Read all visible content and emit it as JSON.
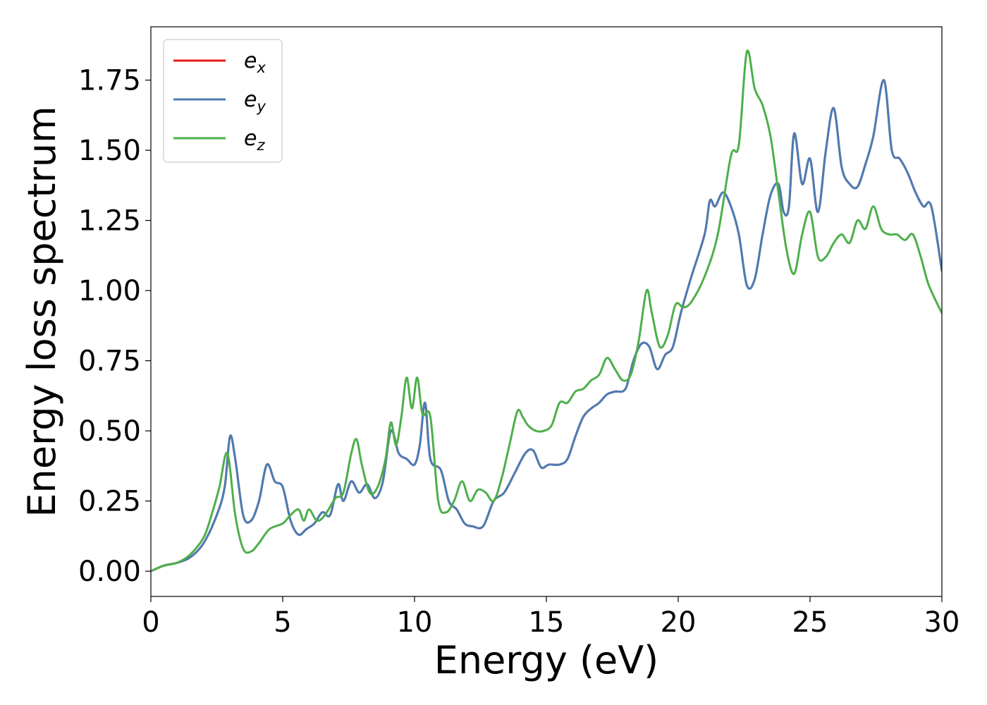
{
  "chart_data": {
    "type": "line",
    "title": "",
    "xlabel": "Energy (eV)",
    "ylabel": "Energy loss spectrum",
    "xlim": [
      0,
      30
    ],
    "ylim": [
      -0.09,
      1.94
    ],
    "xticks": [
      0,
      5,
      10,
      15,
      20,
      25,
      30
    ],
    "xtick_labels": [
      "0",
      "5",
      "10",
      "15",
      "20",
      "25",
      "30"
    ],
    "yticks": [
      0.0,
      0.25,
      0.5,
      0.75,
      1.0,
      1.25,
      1.5,
      1.75
    ],
    "ytick_labels": [
      "0.00",
      "0.25",
      "0.50",
      "0.75",
      "1.00",
      "1.25",
      "1.50",
      "1.75"
    ],
    "grid": false,
    "legend": "top-left",
    "series": [
      {
        "name": "e_x",
        "label_base": "e",
        "label_sub": "x",
        "color": "#e41a1c",
        "x": [
          0,
          0.5,
          1,
          1.5,
          2,
          2.5,
          2.8,
          3,
          3.2,
          3.5,
          3.8,
          4.1,
          4.4,
          4.7,
          5,
          5.3,
          5.6,
          5.9,
          6.2,
          6.5,
          6.8,
          7.1,
          7.3,
          7.6,
          7.9,
          8.2,
          8.5,
          8.8,
          9.1,
          9.4,
          9.7,
          10,
          10.2,
          10.4,
          10.6,
          11,
          11.3,
          11.6,
          11.9,
          12.2,
          12.6,
          13,
          13.4,
          13.8,
          14.2,
          14.5,
          14.8,
          15.1,
          15.5,
          15.8,
          16.1,
          16.4,
          16.7,
          17,
          17.3,
          17.6,
          18,
          18.3,
          18.6,
          18.9,
          19.2,
          19.5,
          19.8,
          20.1,
          20.5,
          21,
          21.2,
          21.4,
          21.7,
          22,
          22.3,
          22.6,
          22.9,
          23.2,
          23.5,
          23.8,
          24,
          24.2,
          24.4,
          24.7,
          25,
          25.3,
          25.6,
          25.9,
          26.2,
          26.5,
          26.8,
          27.1,
          27.4,
          27.8,
          28.1,
          28.4,
          28.7,
          29,
          29.3,
          29.6,
          30
        ],
        "values": [
          0.0,
          0.02,
          0.03,
          0.05,
          0.1,
          0.2,
          0.3,
          0.48,
          0.4,
          0.2,
          0.18,
          0.25,
          0.38,
          0.32,
          0.3,
          0.18,
          0.13,
          0.15,
          0.17,
          0.21,
          0.2,
          0.31,
          0.25,
          0.32,
          0.28,
          0.31,
          0.26,
          0.32,
          0.5,
          0.42,
          0.4,
          0.38,
          0.45,
          0.6,
          0.4,
          0.36,
          0.25,
          0.22,
          0.17,
          0.16,
          0.16,
          0.25,
          0.28,
          0.35,
          0.42,
          0.43,
          0.37,
          0.38,
          0.38,
          0.4,
          0.48,
          0.55,
          0.58,
          0.6,
          0.63,
          0.64,
          0.65,
          0.75,
          0.81,
          0.8,
          0.72,
          0.77,
          0.8,
          0.92,
          1.05,
          1.2,
          1.32,
          1.3,
          1.35,
          1.3,
          1.2,
          1.02,
          1.04,
          1.2,
          1.34,
          1.38,
          1.28,
          1.3,
          1.56,
          1.38,
          1.47,
          1.28,
          1.5,
          1.65,
          1.44,
          1.38,
          1.37,
          1.45,
          1.55,
          1.75,
          1.5,
          1.47,
          1.42,
          1.35,
          1.3,
          1.3,
          1.07
        ]
      },
      {
        "name": "e_y",
        "label_base": "e",
        "label_sub": "y",
        "color": "#4a7db5",
        "x": [
          0,
          0.5,
          1,
          1.5,
          2,
          2.5,
          2.8,
          3,
          3.2,
          3.5,
          3.8,
          4.1,
          4.4,
          4.7,
          5,
          5.3,
          5.6,
          5.9,
          6.2,
          6.5,
          6.8,
          7.1,
          7.3,
          7.6,
          7.9,
          8.2,
          8.5,
          8.8,
          9.1,
          9.4,
          9.7,
          10,
          10.2,
          10.4,
          10.6,
          11,
          11.3,
          11.6,
          11.9,
          12.2,
          12.6,
          13,
          13.4,
          13.8,
          14.2,
          14.5,
          14.8,
          15.1,
          15.5,
          15.8,
          16.1,
          16.4,
          16.7,
          17,
          17.3,
          17.6,
          18,
          18.3,
          18.6,
          18.9,
          19.2,
          19.5,
          19.8,
          20.1,
          20.5,
          21,
          21.2,
          21.4,
          21.7,
          22,
          22.3,
          22.6,
          22.9,
          23.2,
          23.5,
          23.8,
          24,
          24.2,
          24.4,
          24.7,
          25,
          25.3,
          25.6,
          25.9,
          26.2,
          26.5,
          26.8,
          27.1,
          27.4,
          27.8,
          28.1,
          28.4,
          28.7,
          29,
          29.3,
          29.6,
          30
        ],
        "values": [
          0.0,
          0.02,
          0.03,
          0.05,
          0.1,
          0.2,
          0.3,
          0.48,
          0.4,
          0.2,
          0.18,
          0.25,
          0.38,
          0.32,
          0.3,
          0.18,
          0.13,
          0.15,
          0.17,
          0.21,
          0.2,
          0.31,
          0.25,
          0.32,
          0.28,
          0.31,
          0.26,
          0.32,
          0.5,
          0.42,
          0.4,
          0.38,
          0.45,
          0.6,
          0.4,
          0.36,
          0.25,
          0.22,
          0.17,
          0.16,
          0.16,
          0.25,
          0.28,
          0.35,
          0.42,
          0.43,
          0.37,
          0.38,
          0.38,
          0.4,
          0.48,
          0.55,
          0.58,
          0.6,
          0.63,
          0.64,
          0.65,
          0.75,
          0.81,
          0.8,
          0.72,
          0.77,
          0.8,
          0.92,
          1.05,
          1.2,
          1.32,
          1.3,
          1.35,
          1.3,
          1.2,
          1.02,
          1.04,
          1.2,
          1.34,
          1.38,
          1.28,
          1.3,
          1.56,
          1.38,
          1.47,
          1.28,
          1.5,
          1.65,
          1.44,
          1.38,
          1.37,
          1.45,
          1.55,
          1.75,
          1.5,
          1.47,
          1.42,
          1.35,
          1.3,
          1.3,
          1.07
        ]
      },
      {
        "name": "e_z",
        "label_base": "e",
        "label_sub": "z",
        "color": "#4daf4a",
        "x": [
          0,
          0.5,
          1,
          1.5,
          2,
          2.3,
          2.6,
          2.9,
          3.2,
          3.5,
          3.8,
          4.1,
          4.5,
          5,
          5.3,
          5.6,
          5.8,
          6,
          6.3,
          6.6,
          7,
          7.3,
          7.6,
          7.8,
          8,
          8.3,
          8.6,
          8.9,
          9.1,
          9.3,
          9.5,
          9.7,
          9.9,
          10.1,
          10.3,
          10.6,
          10.9,
          11.2,
          11.5,
          11.8,
          12.1,
          12.4,
          12.7,
          13,
          13.3,
          13.6,
          13.9,
          14.1,
          14.3,
          14.6,
          14.9,
          15.2,
          15.5,
          15.8,
          16.1,
          16.4,
          16.7,
          17,
          17.3,
          17.6,
          17.9,
          18.2,
          18.5,
          18.8,
          19,
          19.3,
          19.6,
          19.9,
          20.2,
          20.5,
          21,
          21.5,
          22,
          22.3,
          22.6,
          22.9,
          23.2,
          23.5,
          23.8,
          24.1,
          24.4,
          24.7,
          25,
          25.3,
          25.6,
          25.9,
          26.2,
          26.5,
          26.8,
          27.1,
          27.4,
          27.7,
          28,
          28.3,
          28.6,
          28.9,
          29.2,
          29.5,
          30
        ],
        "values": [
          0.0,
          0.02,
          0.03,
          0.06,
          0.12,
          0.2,
          0.3,
          0.42,
          0.2,
          0.08,
          0.07,
          0.1,
          0.15,
          0.17,
          0.2,
          0.22,
          0.18,
          0.22,
          0.18,
          0.2,
          0.26,
          0.28,
          0.42,
          0.47,
          0.38,
          0.28,
          0.3,
          0.4,
          0.53,
          0.45,
          0.55,
          0.69,
          0.58,
          0.69,
          0.56,
          0.55,
          0.25,
          0.21,
          0.25,
          0.32,
          0.25,
          0.29,
          0.28,
          0.25,
          0.33,
          0.45,
          0.57,
          0.55,
          0.52,
          0.5,
          0.5,
          0.52,
          0.6,
          0.6,
          0.64,
          0.65,
          0.68,
          0.7,
          0.76,
          0.72,
          0.68,
          0.7,
          0.82,
          1.0,
          0.92,
          0.8,
          0.84,
          0.95,
          0.94,
          0.96,
          1.05,
          1.2,
          1.48,
          1.52,
          1.85,
          1.72,
          1.66,
          1.55,
          1.35,
          1.15,
          1.06,
          1.2,
          1.28,
          1.12,
          1.12,
          1.17,
          1.2,
          1.17,
          1.25,
          1.22,
          1.3,
          1.22,
          1.2,
          1.2,
          1.18,
          1.2,
          1.12,
          1.02,
          0.92
        ]
      }
    ]
  }
}
